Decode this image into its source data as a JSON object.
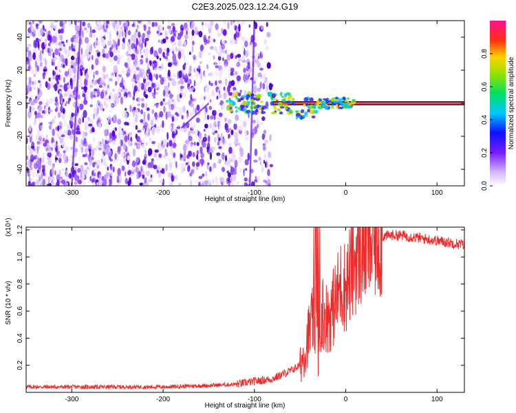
{
  "figure": {
    "title": "C2E3.2025.023.12.24.G19"
  },
  "colors": {
    "spectrogram_low": "#d9c2ff",
    "spectrogram_mid": "#7a2bff",
    "spectrogram_high": "#3d00c8",
    "snr_line": "#ee2b2b",
    "axes": "#000000"
  },
  "chart_data": [
    {
      "type": "heatmap",
      "title": "C2E3.2025.023.12.24.G19",
      "xlabel": "Height of straight line (km)",
      "ylabel": "Frequency (Hz)",
      "xlim": [
        -350,
        130
      ],
      "ylim": [
        -50,
        50
      ],
      "xticks": [
        -300,
        -200,
        -100,
        0,
        100
      ],
      "yticks": [
        -40,
        -20,
        0,
        20,
        40
      ],
      "colorbar": {
        "label": "Normalized spectral amplitude",
        "range": [
          0,
          1
        ],
        "ticks": [
          "0.0",
          "0.2",
          "0.4",
          "0.6",
          "0.8"
        ],
        "colormap": "rainbow (white-violet-blue-cyan-green-yellow-red-magenta)"
      },
      "features": {
        "noise_region_x": [
          -350,
          -80
        ],
        "signal_line_x": [
          -80,
          130
        ],
        "signal_frequency_hz": 0
      }
    },
    {
      "type": "line",
      "xlabel": "Height of straight line (km)",
      "ylabel": "SNR (10 * v/v)",
      "y_multiplier": "(x10⁴)",
      "xlim": [
        -350,
        130
      ],
      "ylim": [
        0,
        1.22
      ],
      "xticks": [
        -300,
        -200,
        -100,
        0,
        100
      ],
      "yticks": [
        0.2,
        0.4,
        0.6,
        0.8,
        1.0,
        1.2
      ],
      "series": [
        {
          "color": "#ee2b2b",
          "x": [
            -350,
            -300,
            -250,
            -200,
            -150,
            -120,
            -100,
            -80,
            -60,
            -50,
            -45,
            -40,
            -35,
            -30,
            -25,
            -20,
            -15,
            -10,
            -5,
            0,
            5,
            10,
            20,
            30,
            40,
            50,
            60,
            70,
            80,
            90,
            100,
            110,
            120,
            130
          ],
          "y": [
            0.04,
            0.04,
            0.04,
            0.04,
            0.05,
            0.06,
            0.08,
            0.1,
            0.16,
            0.2,
            0.3,
            0.45,
            0.55,
            0.3,
            0.6,
            0.55,
            0.6,
            0.7,
            0.8,
            0.78,
            0.88,
            0.98,
            1.08,
            1.13,
            1.15,
            1.16,
            1.16,
            1.15,
            1.14,
            1.13,
            1.12,
            1.11,
            1.1,
            1.09
          ]
        }
      ]
    }
  ]
}
